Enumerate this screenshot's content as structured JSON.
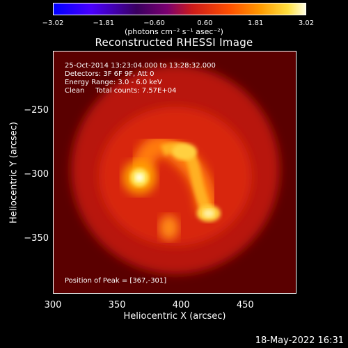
{
  "colorbar": {
    "ticks": [
      "−3.02",
      "−1.81",
      "−0.60",
      "0.60",
      "1.81",
      "3.02"
    ],
    "units": "(photons cm⁻² s⁻¹ asec⁻²)"
  },
  "title": "Reconstructed RHESSI Image",
  "info": {
    "time": "25-Oct-2014 13:23:04.000 to 13:28:32.000",
    "detectors": "Detectors: 3F 6F 9F, Att 0",
    "energy": "Energy Range: 3.0 - 6.0 keV",
    "clean": "Clean     Total counts: 7.57E+04",
    "peak": "Position of Peak = [367,-301]"
  },
  "chart_data": {
    "type": "heatmap",
    "title": "Reconstructed RHESSI Image",
    "xlabel": "Heliocentric X (arcsec)",
    "ylabel": "Heliocentric Y (arcsec)",
    "xlim": [
      300,
      490
    ],
    "ylim": [
      -392,
      -203
    ],
    "x_ticks": [
      "300",
      "350",
      "400",
      "450"
    ],
    "y_ticks": [
      "−250",
      "−300",
      "−350"
    ],
    "x_tick_values": [
      300,
      350,
      400,
      450
    ],
    "y_tick_values": [
      -250,
      -300,
      -350
    ],
    "colorscale": [
      "#7a0000",
      "#cc1a1a",
      "#ff5000",
      "#ffa000",
      "#ffe040",
      "#ffffe0"
    ],
    "peak": [
      367,
      -301
    ]
  },
  "timestamp": "18-May-2022 16:31"
}
